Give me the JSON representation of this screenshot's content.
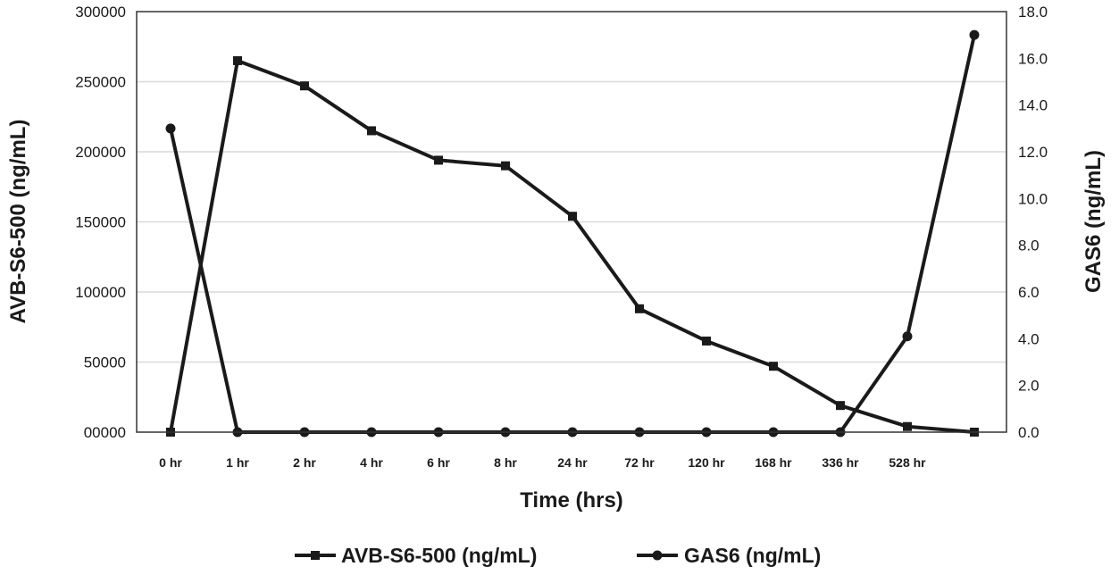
{
  "chart_data": {
    "type": "line",
    "categories": [
      "0 hr",
      "1 hr",
      "2 hr",
      "4 hr",
      "6 hr",
      "8 hr",
      "24 hr",
      "72 hr",
      "120 hr",
      "168 hr",
      "336 hr",
      "528 hr",
      ""
    ],
    "xlabel": "Time (hrs)",
    "ylabel": "AVB-S6-500 (ng/mL)",
    "y2label": "GAS6 (ng/mL)",
    "ylim": [
      0,
      300000
    ],
    "y2lim": [
      0,
      18
    ],
    "yticks": [
      "00000",
      "50000",
      "100000",
      "150000",
      "200000",
      "250000",
      "300000"
    ],
    "y2ticks": [
      "0.0",
      "2.0",
      "4.0",
      "6.0",
      "8.0",
      "10.0",
      "12.0",
      "14.0",
      "16.0",
      "18.0"
    ],
    "grid": true,
    "legend_position": "bottom",
    "series": [
      {
        "name": "AVB-S6-500 (ng/mL)",
        "axis": "left",
        "marker": "square",
        "color": "#1a1a1a",
        "values": [
          0,
          265000,
          247000,
          215000,
          194000,
          190000,
          154000,
          88000,
          65000,
          47000,
          19000,
          4000,
          0
        ]
      },
      {
        "name": "GAS6 (ng/mL)",
        "axis": "right",
        "marker": "circle",
        "color": "#1a1a1a",
        "values": [
          13.0,
          0.0,
          0.0,
          0.0,
          0.0,
          0.0,
          0.0,
          0.0,
          0.0,
          0.0,
          0.0,
          4.1,
          17.0
        ]
      }
    ]
  }
}
